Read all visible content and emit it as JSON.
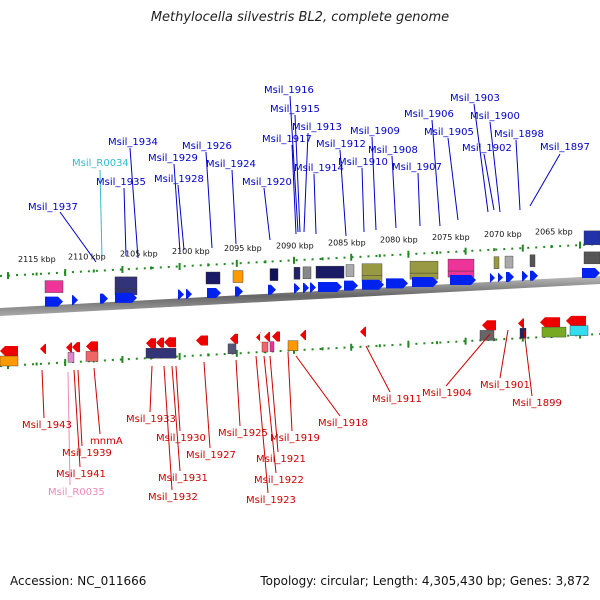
{
  "title": "Methylocella silvestris BL2, complete genome",
  "footer": {
    "accession": "Accession: NC_011666",
    "topology": "Topology: circular; Length: 4,305,430 bp; Genes: 3,872"
  },
  "colors": {
    "upper_label": "#0000cc",
    "lower_label": "#cc0000",
    "rna_upper": "#33bbcc",
    "rna_lower": "#ee88bb",
    "forward_gene": "#0022ee",
    "reverse_gene": "#ee0000",
    "backbone": "#808080",
    "tick": "#228822"
  },
  "scale_labels": [
    "2115 kbp",
    "2110 kbp",
    "2105 kbp",
    "2100 kbp",
    "2095 kbp",
    "2090 kbp",
    "2085 kbp",
    "2080 kbp",
    "2075 kbp",
    "2070 kbp",
    "2065 kbp"
  ],
  "upper_genes": [
    "Msil_1916",
    "Msil_1915",
    "Msil_1913",
    "Msil_1917",
    "Msil_1934",
    "Msil_1926",
    "Msil_1909",
    "Msil_1912",
    "Msil_1906",
    "Msil_1903",
    "Msil_1900",
    "Msil_1905",
    "Msil_1898",
    "Msil_R0034",
    "Msil_1929",
    "Msil_1924",
    "Msil_1914",
    "Msil_1910",
    "Msil_1908",
    "Msil_1907",
    "Msil_1902",
    "Msil_1897",
    "Msil_1935",
    "Msil_1928",
    "Msil_1920",
    "Msil_1937"
  ],
  "lower_genes": [
    "Msil_1911",
    "Msil_1904",
    "Msil_1901",
    "Msil_1899",
    "Msil_1918",
    "Msil_1933",
    "Msil_1943",
    "mnmA",
    "Msil_1939",
    "Msil_1930",
    "Msil_1925",
    "Msil_1919",
    "Msil_1927",
    "Msil_1921",
    "Msil_1941",
    "Msil_1931",
    "Msil_1922",
    "Msil_R0035",
    "Msil_1932",
    "Msil_1923"
  ]
}
